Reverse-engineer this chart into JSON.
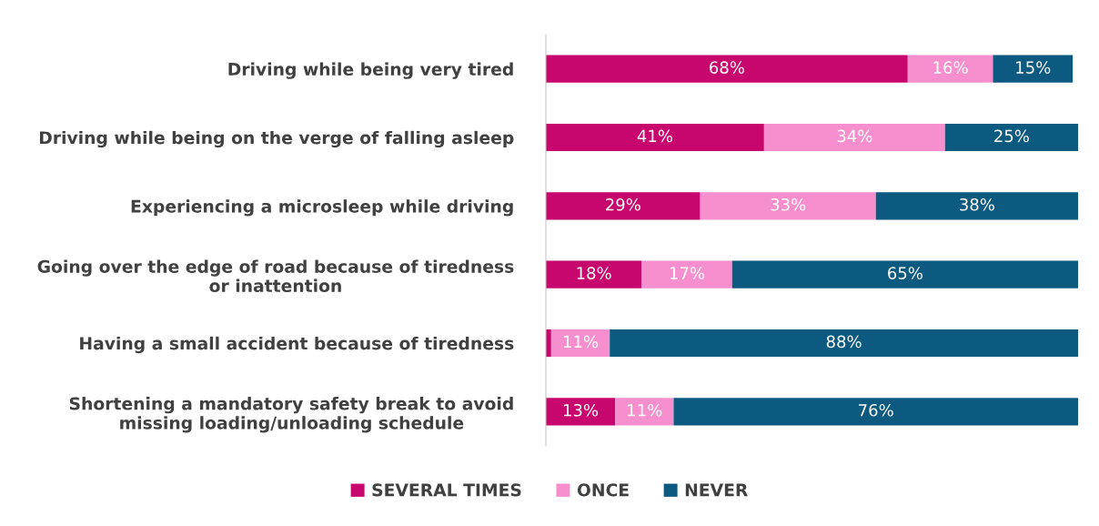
{
  "chart_data": {
    "type": "bar",
    "orientation": "horizontal",
    "stacked": true,
    "legend": "bottom",
    "grid": false,
    "categories": [
      "Driving while being very tired",
      "Driving while being on the verge of falling asleep",
      "Experiencing a microsleep while driving",
      "Going over the edge of road because of tiredness\nor inattention",
      "Having a small accident because of tiredness",
      "Shortening a mandatory safety break to avoid\nmissing loading/unloading schedule"
    ],
    "series": [
      {
        "name": "SEVERAL TIMES",
        "color": "#c7066e",
        "values": [
          68,
          41,
          29,
          18,
          1,
          13
        ],
        "value_labels": [
          "68%",
          "41%",
          "29%",
          "18%",
          null,
          "13%"
        ]
      },
      {
        "name": "ONCE",
        "color": "#f78fcf",
        "values": [
          16,
          34,
          33,
          17,
          11,
          11
        ],
        "value_labels": [
          "16%",
          "34%",
          "33%",
          "17%",
          "11%",
          "11%"
        ]
      },
      {
        "name": "NEVER",
        "color": "#0d5a80",
        "values": [
          15,
          25,
          38,
          65,
          88,
          76
        ],
        "value_labels": [
          "15%",
          "25%",
          "38%",
          "65%",
          "88%",
          "76%"
        ]
      }
    ]
  }
}
